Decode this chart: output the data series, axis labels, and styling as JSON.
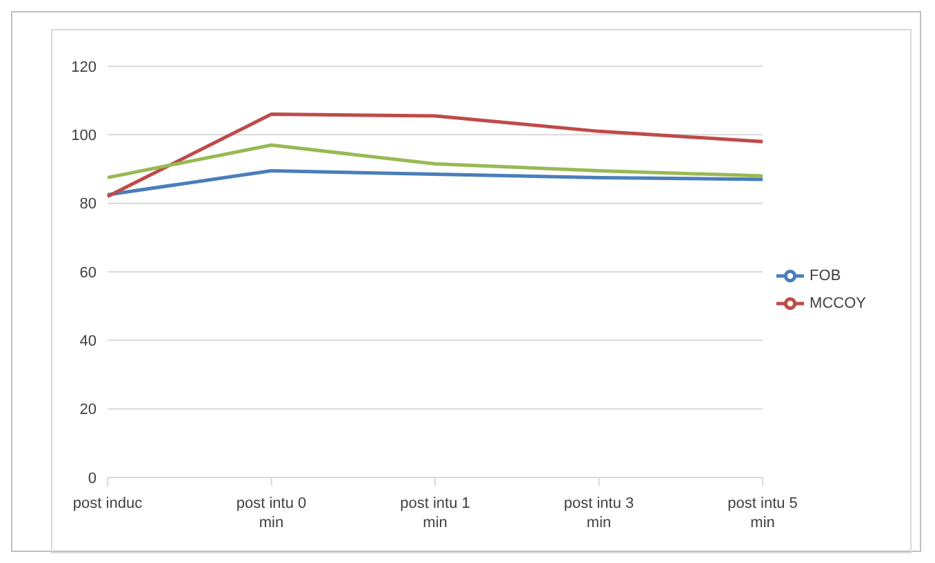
{
  "chart_data": {
    "type": "line",
    "categories": [
      "post induc",
      "post intu 0 min",
      "post intu 1 min",
      "post intu 3 min",
      "post intu 5 min"
    ],
    "series": [
      {
        "name": "FOB",
        "color": "#4a7ebb",
        "values": [
          82.5,
          89.5,
          88.5,
          87.5,
          87
        ]
      },
      {
        "name": "MCCOY",
        "color": "#be4b48",
        "values": [
          82,
          106,
          105.5,
          101,
          98
        ]
      },
      {
        "color": "#98b954",
        "values": [
          87.5,
          97,
          91.5,
          89.5,
          88
        ]
      }
    ],
    "ylim": [
      0,
      120
    ],
    "yticks": [
      0,
      20,
      40,
      60,
      80,
      100,
      120
    ],
    "grid": "y",
    "legend": "right",
    "marker": "none",
    "line_style": "solid"
  }
}
